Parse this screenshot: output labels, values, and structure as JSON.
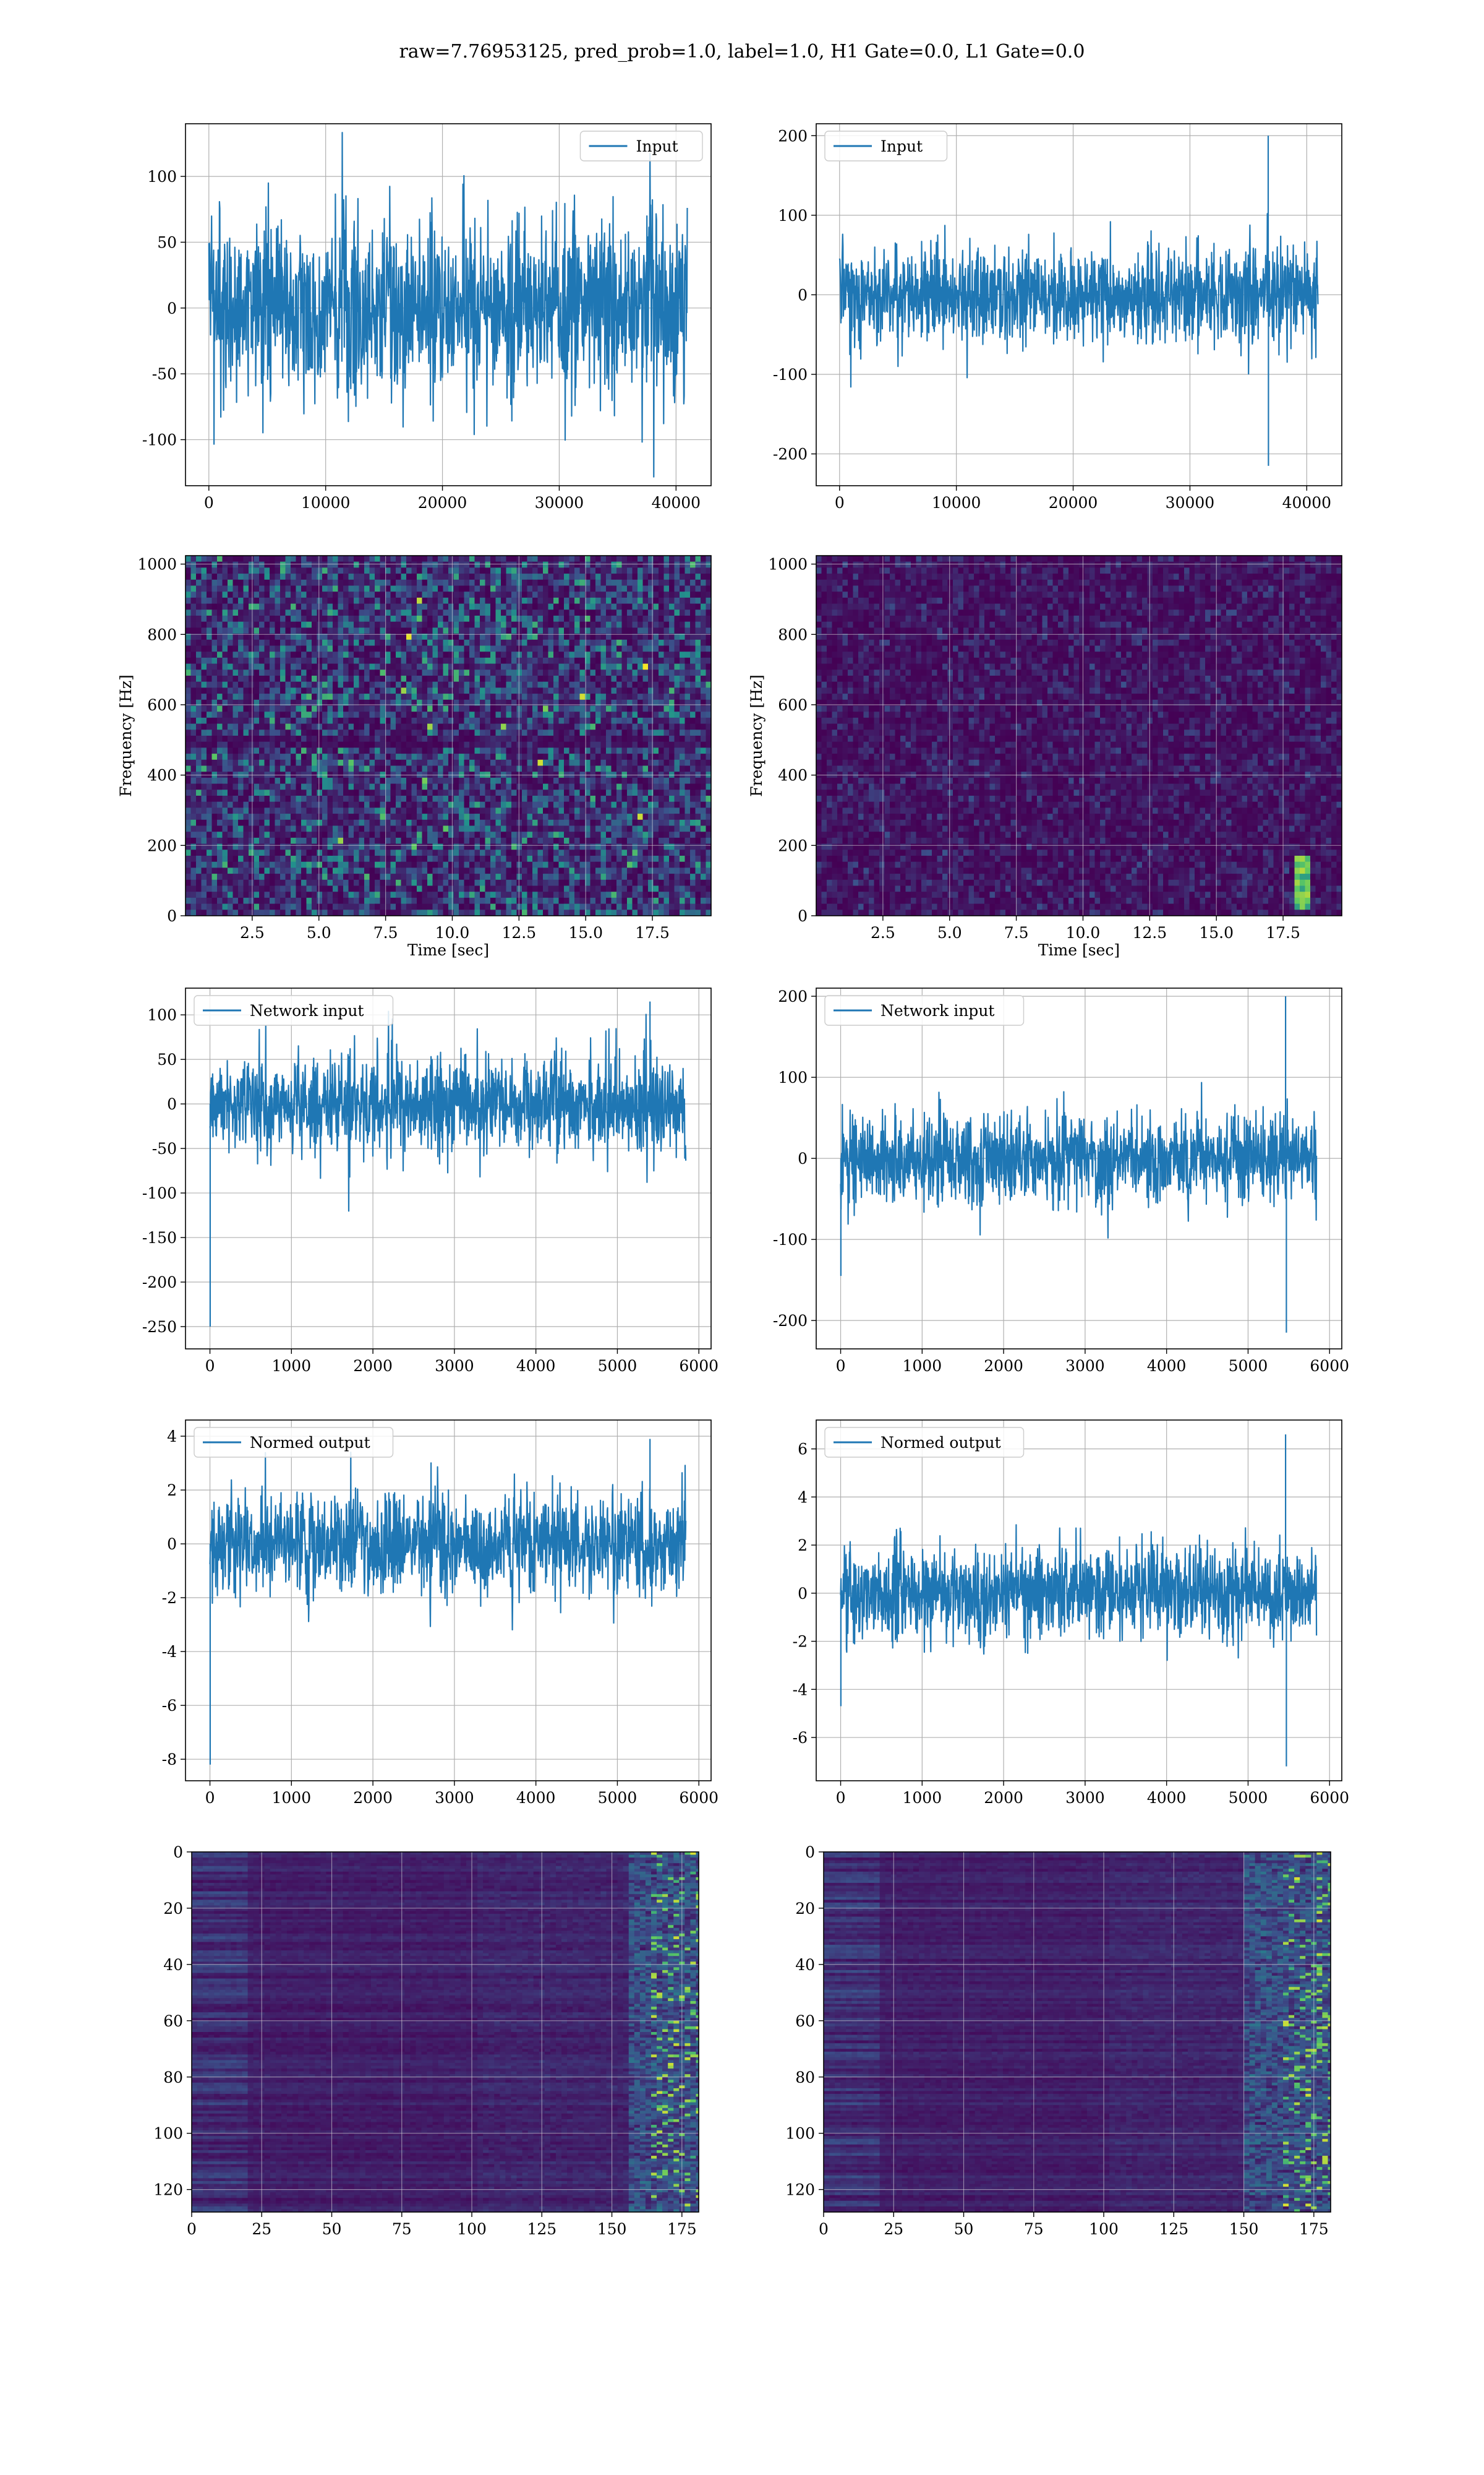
{
  "figure": {
    "title": "raw=7.76953125, pred_prob=1.0, label=1.0, H1 Gate=0.0, L1 Gate=0.0"
  },
  "colors": {
    "line": "#1f77b4",
    "grid": "#b0b0b0",
    "viridis_low": "#440154",
    "viridis_high": "#fde725"
  },
  "chart_data": [
    {
      "id": "h1-input",
      "type": "line",
      "series_name": "Input",
      "legend": "top-right",
      "xlim": [
        -2000,
        43000
      ],
      "ylim": [
        -135,
        140
      ],
      "xticks": [
        0,
        10000,
        20000,
        30000,
        40000
      ],
      "yticks": [
        -100,
        -50,
        0,
        50,
        100
      ],
      "n_samples": 40960,
      "noise_sigma": 35,
      "spikes": [],
      "grid": true
    },
    {
      "id": "l1-input",
      "type": "line",
      "series_name": "Input",
      "legend": "top-left",
      "xlim": [
        -2000,
        43000
      ],
      "ylim": [
        -240,
        215
      ],
      "xticks": [
        0,
        10000,
        20000,
        30000,
        40000
      ],
      "yticks": [
        -200,
        -100,
        0,
        100,
        200
      ],
      "n_samples": 40960,
      "noise_sigma": 30,
      "spikes": [
        {
          "x": 36700,
          "y": 200
        },
        {
          "x": 36720,
          "y": -215
        }
      ],
      "grid": true
    },
    {
      "id": "h1-spectrogram",
      "type": "heatmap",
      "kind": "spectrogram",
      "xlabel": "Time [sec]",
      "ylabel": "Frequency [Hz]",
      "xlim": [
        0,
        19.7
      ],
      "ylim": [
        0,
        1024
      ],
      "xticks": [
        2.5,
        5.0,
        7.5,
        10.0,
        12.5,
        15.0,
        17.5
      ],
      "yticks": [
        0,
        200,
        400,
        600,
        800,
        1000
      ],
      "intensity": 0.32,
      "grid": true
    },
    {
      "id": "l1-spectrogram",
      "type": "heatmap",
      "kind": "spectrogram",
      "xlabel": "Time [sec]",
      "ylabel": "Frequency [Hz]",
      "xlim": [
        0,
        19.7
      ],
      "ylim": [
        0,
        1024
      ],
      "xticks": [
        2.5,
        5.0,
        7.5,
        10.0,
        12.5,
        15.0,
        17.5
      ],
      "yticks": [
        0,
        200,
        400,
        600,
        800,
        1000
      ],
      "intensity": 0.12,
      "hotspot": {
        "t": 18.2,
        "f_low": 20,
        "f_high": 180
      },
      "grid": true
    },
    {
      "id": "h1-network-input",
      "type": "line",
      "series_name": "Network input",
      "legend": "top-left",
      "xlim": [
        -300,
        6150
      ],
      "ylim": [
        -275,
        130
      ],
      "xticks": [
        0,
        1000,
        2000,
        3000,
        4000,
        5000,
        6000
      ],
      "yticks": [
        -250,
        -200,
        -150,
        -100,
        -50,
        0,
        50,
        100
      ],
      "n_samples": 5840,
      "noise_sigma": 27,
      "spikes": [
        {
          "x": 3,
          "y": -250
        },
        {
          "x": 5400,
          "y": 115
        }
      ],
      "grid": true
    },
    {
      "id": "l1-network-input",
      "type": "line",
      "series_name": "Network input",
      "legend": "top-left",
      "xlim": [
        -300,
        6150
      ],
      "ylim": [
        -235,
        210
      ],
      "xticks": [
        0,
        1000,
        2000,
        3000,
        4000,
        5000,
        6000
      ],
      "yticks": [
        -200,
        -100,
        0,
        100,
        200
      ],
      "n_samples": 5840,
      "noise_sigma": 27,
      "spikes": [
        {
          "x": 3,
          "y": -145
        },
        {
          "x": 5460,
          "y": 200
        },
        {
          "x": 5470,
          "y": -215
        }
      ],
      "grid": true
    },
    {
      "id": "h1-normed-output",
      "type": "line",
      "series_name": "Normed output",
      "legend": "top-left",
      "xlim": [
        -300,
        6150
      ],
      "ylim": [
        -8.8,
        4.6
      ],
      "xticks": [
        0,
        1000,
        2000,
        3000,
        4000,
        5000,
        6000
      ],
      "yticks": [
        -8,
        -6,
        -4,
        -2,
        0,
        2,
        4
      ],
      "n_samples": 5840,
      "noise_sigma": 0.95,
      "spikes": [
        {
          "x": 3,
          "y": -8.2
        },
        {
          "x": 5400,
          "y": 3.9
        }
      ],
      "grid": true
    },
    {
      "id": "l1-normed-output",
      "type": "line",
      "series_name": "Normed output",
      "legend": "top-left",
      "xlim": [
        -300,
        6150
      ],
      "ylim": [
        -7.8,
        7.2
      ],
      "xticks": [
        0,
        1000,
        2000,
        3000,
        4000,
        5000,
        6000
      ],
      "yticks": [
        -6,
        -4,
        -2,
        0,
        2,
        4,
        6
      ],
      "n_samples": 5840,
      "noise_sigma": 0.95,
      "spikes": [
        {
          "x": 3,
          "y": -4.7
        },
        {
          "x": 5460,
          "y": 6.6
        },
        {
          "x": 5470,
          "y": -7.2
        }
      ],
      "grid": true
    },
    {
      "id": "h1-feature-map",
      "type": "heatmap",
      "kind": "feature-map",
      "xlim": [
        0,
        181
      ],
      "ylim": [
        128,
        0
      ],
      "y_inverted": true,
      "xticks": [
        0,
        25,
        50,
        75,
        100,
        125,
        150,
        175
      ],
      "yticks": [
        0,
        20,
        40,
        60,
        80,
        100,
        120
      ],
      "active_band": [
        155,
        181
      ],
      "grid": true
    },
    {
      "id": "l1-feature-map",
      "type": "heatmap",
      "kind": "feature-map",
      "xlim": [
        0,
        181
      ],
      "ylim": [
        128,
        0
      ],
      "y_inverted": true,
      "xticks": [
        0,
        25,
        50,
        75,
        100,
        125,
        150,
        175
      ],
      "yticks": [
        0,
        20,
        40,
        60,
        80,
        100,
        120
      ],
      "active_band": [
        150,
        181
      ],
      "grid": true
    }
  ]
}
